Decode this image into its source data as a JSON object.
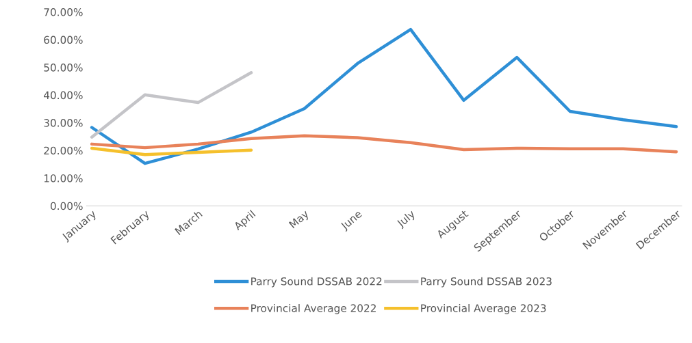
{
  "chart_data": {
    "type": "line",
    "categories": [
      "January",
      "February",
      "March",
      "April",
      "May",
      "June",
      "July",
      "August",
      "September",
      "October",
      "November",
      "December"
    ],
    "series": [
      {
        "name": "Parry Sound DSSAB 2022",
        "color": "#2e8fd6",
        "values": [
          28.3,
          15.3,
          20.5,
          26.6,
          35.1,
          51.4,
          63.7,
          38.1,
          53.6,
          34.1,
          31.1,
          28.6
        ]
      },
      {
        "name": "Provincial Average 2022",
        "color": "#e8825a",
        "values": [
          22.3,
          21.0,
          22.3,
          24.3,
          25.3,
          24.6,
          22.8,
          20.3,
          20.8,
          20.6,
          20.6,
          19.5
        ]
      },
      {
        "name": "Parry Sound DSSAB 2023",
        "color": "#c4c4c8",
        "values": [
          24.8,
          40.1,
          37.3,
          48.1,
          null,
          null,
          null,
          null,
          null,
          null,
          null,
          null
        ]
      },
      {
        "name": "Provincial Average 2023",
        "color": "#f5c02c",
        "values": [
          20.8,
          18.5,
          19.3,
          20.1,
          null,
          null,
          null,
          null,
          null,
          null,
          null,
          null
        ]
      }
    ],
    "ylim": [
      0,
      70
    ],
    "yticks": [
      {
        "value": 0,
        "label": "0.00%"
      },
      {
        "value": 10,
        "label": "10.00%"
      },
      {
        "value": 20,
        "label": "20.00%"
      },
      {
        "value": 30,
        "label": "30.00%"
      },
      {
        "value": 40,
        "label": "40.00%"
      },
      {
        "value": 50,
        "label": "50.00%"
      },
      {
        "value": 60,
        "label": "60.00%"
      },
      {
        "value": 70,
        "label": "70.00%"
      }
    ],
    "legend": "bottom",
    "marker": "none",
    "line_style": "solid"
  }
}
